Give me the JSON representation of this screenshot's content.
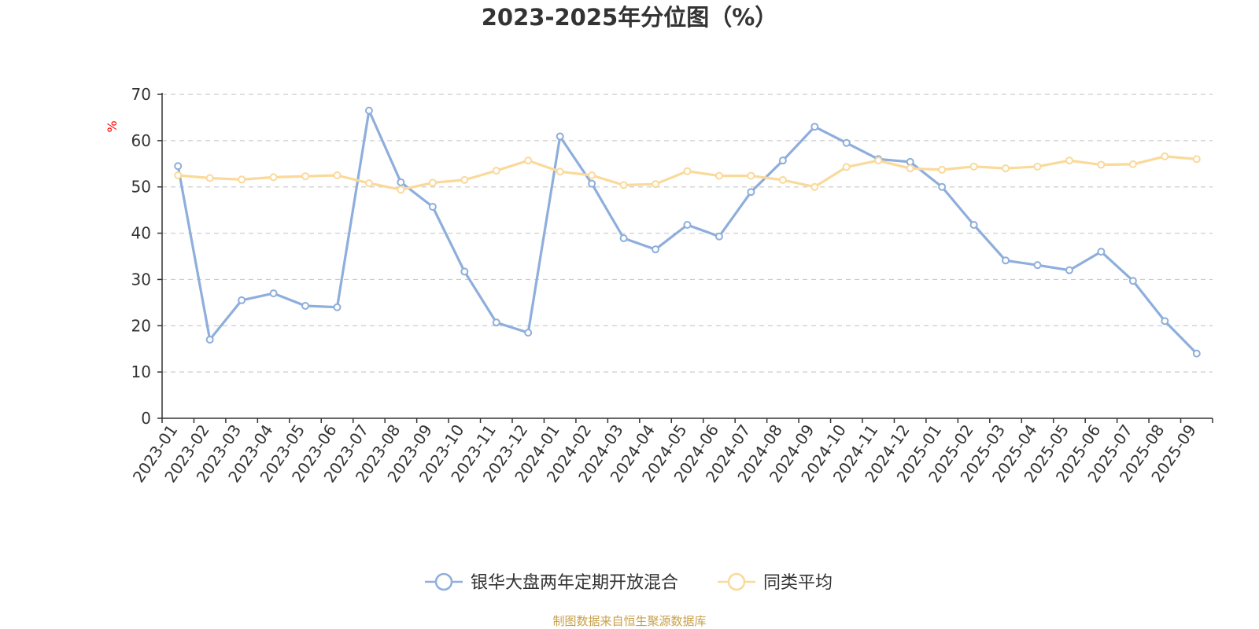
{
  "chart_data": {
    "type": "line",
    "title": "2023-2025年分位图（%）",
    "ylabel": "%",
    "xlabel": "",
    "ylim": [
      0,
      70
    ],
    "yticks": [
      0,
      10,
      20,
      30,
      40,
      50,
      60,
      70
    ],
    "grid": true,
    "legend_position": "bottom",
    "categories": [
      "2023-01",
      "2023-02",
      "2023-03",
      "2023-04",
      "2023-05",
      "2023-06",
      "2023-07",
      "2023-08",
      "2023-09",
      "2023-10",
      "2023-11",
      "2023-12",
      "2024-01",
      "2024-02",
      "2024-03",
      "2024-04",
      "2024-05",
      "2024-06",
      "2024-07",
      "2024-08",
      "2024-09",
      "2024-10",
      "2024-11",
      "2024-12",
      "2025-01",
      "2025-02",
      "2025-03",
      "2025-04",
      "2025-05",
      "2025-06",
      "2025-07",
      "2025-08",
      "2025-09"
    ],
    "series": [
      {
        "name": "银华大盘两年定期开放混合",
        "color": "#8eaedb",
        "values": [
          54.5,
          17.0,
          25.5,
          27.0,
          24.3,
          24.0,
          66.5,
          51.0,
          45.7,
          31.7,
          20.7,
          18.5,
          60.9,
          50.7,
          38.9,
          36.5,
          41.8,
          39.3,
          48.9,
          55.7,
          63.0,
          59.5,
          56.0,
          55.4,
          50.0,
          41.8,
          34.1,
          33.1,
          32.0,
          36.0,
          29.7,
          21.0,
          14.0
        ]
      },
      {
        "name": "同类平均",
        "color": "#fad99a",
        "values": [
          52.5,
          51.9,
          51.6,
          52.1,
          52.3,
          52.5,
          50.8,
          49.4,
          50.9,
          51.5,
          53.5,
          55.7,
          53.3,
          52.5,
          50.4,
          50.6,
          53.4,
          52.4,
          52.4,
          51.5,
          50.0,
          54.3,
          55.7,
          54.0,
          53.7,
          54.4,
          54.0,
          54.4,
          55.7,
          54.8,
          54.9,
          56.6,
          56.0
        ]
      }
    ]
  },
  "source_note": "制图数据来自恒生聚源数据库"
}
